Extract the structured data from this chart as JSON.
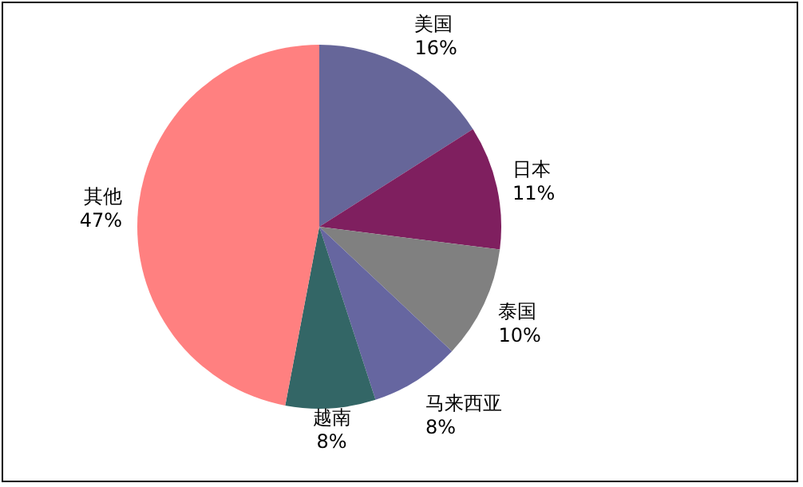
{
  "chart_data": {
    "type": "pie",
    "categories": [
      "美国",
      "日本",
      "泰国",
      "马来西亚",
      "越南",
      "其他"
    ],
    "values": [
      16,
      11,
      10,
      8,
      8,
      47
    ],
    "colors": [
      "#666699",
      "#7f1f5f",
      "#808080",
      "#6666a0",
      "#336666",
      "#ff8080"
    ],
    "value_labels": [
      "16%",
      "11%",
      "10%",
      "8%",
      "8%",
      "47%"
    ]
  }
}
